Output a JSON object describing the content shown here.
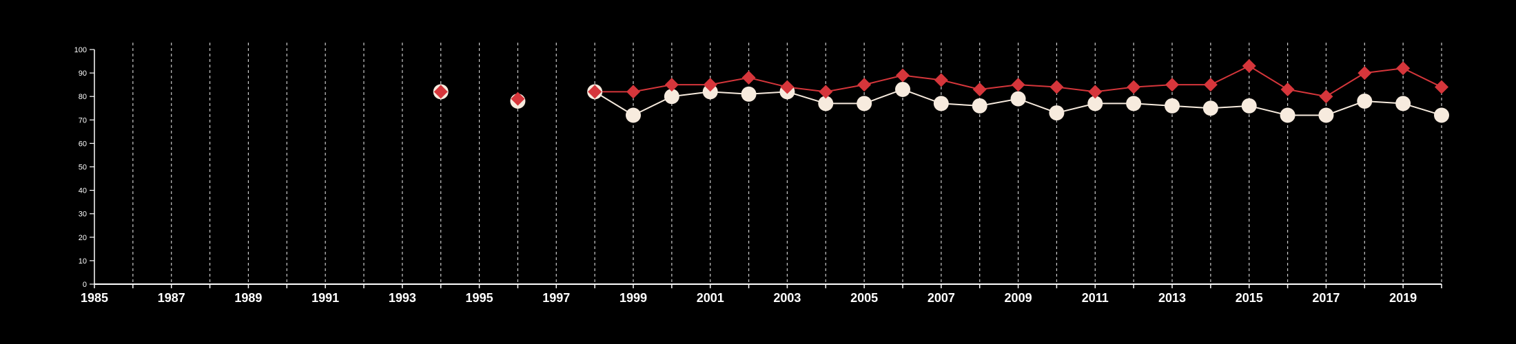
{
  "chart_data": {
    "type": "line",
    "title": "",
    "xlabel": "",
    "ylabel": "",
    "xlim": [
      1985,
      2020
    ],
    "ylim": [
      0,
      100
    ],
    "x_tick_labels": [
      "1985",
      "1987",
      "1989",
      "1991",
      "1993",
      "1995",
      "1997",
      "1999",
      "2001",
      "2003",
      "2005",
      "2007",
      "2009",
      "2011",
      "2013",
      "2015",
      "2017",
      "2019"
    ],
    "y_tick_labels": [
      "0",
      "10",
      "20",
      "30",
      "40",
      "50",
      "60",
      "70",
      "80",
      "90",
      "100"
    ],
    "vertical_gridlines": "dashed",
    "legend": "none",
    "colors": {
      "background": "#000000",
      "axis": "#ffffff",
      "gridline": "#cccccc",
      "series_1": "#d6363b",
      "series_2": "#f7ebde"
    },
    "x": [
      1994,
      1996,
      1998,
      1999,
      2000,
      2001,
      2002,
      2003,
      2004,
      2005,
      2006,
      2007,
      2008,
      2009,
      2010,
      2011,
      2012,
      2013,
      2014,
      2015,
      2016,
      2017,
      2018,
      2019,
      2020
    ],
    "series": [
      {
        "marker": "diamond",
        "color": "#d6363b",
        "values": [
          82,
          79,
          82,
          82,
          85,
          85,
          88,
          84,
          82,
          85,
          89,
          87,
          83,
          85,
          84,
          82,
          84,
          85,
          85,
          93,
          83,
          80,
          90,
          92,
          84
        ]
      },
      {
        "marker": "circle",
        "color": "#f7ebde",
        "values": [
          82,
          78,
          82,
          72,
          80,
          82,
          81,
          82,
          77,
          77,
          83,
          77,
          76,
          79,
          73,
          77,
          77,
          76,
          75,
          76,
          72,
          72,
          78,
          77,
          72
        ]
      }
    ]
  }
}
